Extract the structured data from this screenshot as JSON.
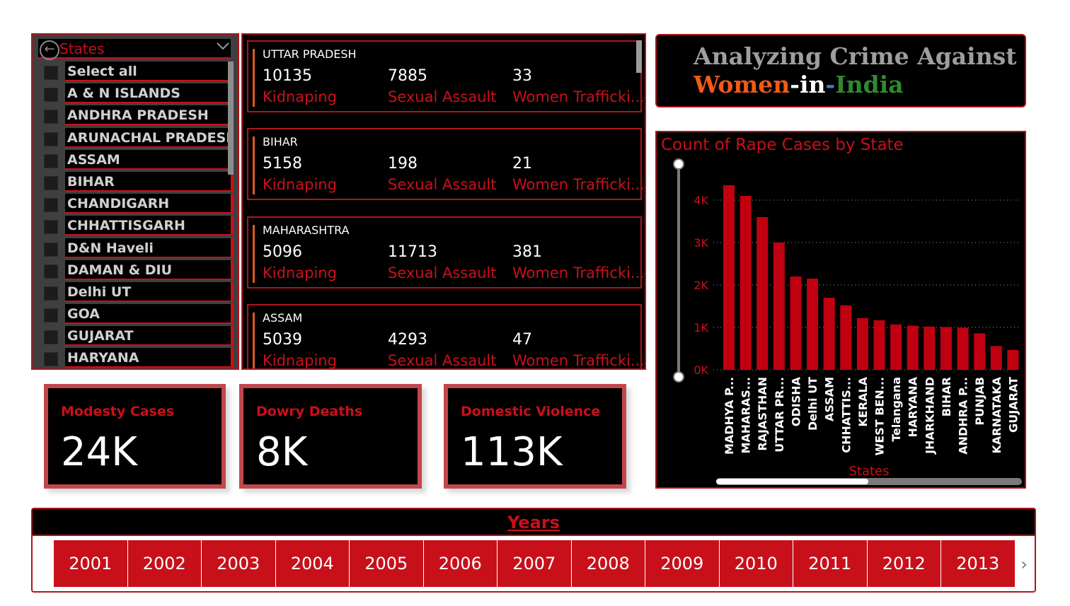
{
  "state_slicer": {
    "title": "States",
    "items": [
      "Select all",
      "A & N ISLANDS",
      "ANDHRA PRADESH",
      "ARUNACHAL PRADESH",
      "ASSAM",
      "BIHAR",
      "CHANDIGARH",
      "CHHATTISGARH",
      "D&N Haveli",
      "DAMAN & DIU",
      "Delhi UT",
      "GOA",
      "GUJARAT",
      "HARYANA"
    ]
  },
  "state_cards": [
    {
      "state": "UTTAR PRADESH",
      "kidnaping": "10135",
      "sexual_assault": "7885",
      "women_trafficking": "33"
    },
    {
      "state": "BIHAR",
      "kidnaping": "5158",
      "sexual_assault": "198",
      "women_trafficking": "21"
    },
    {
      "state": "MAHARASHTRA",
      "kidnaping": "5096",
      "sexual_assault": "11713",
      "women_trafficking": "381"
    },
    {
      "state": "ASSAM",
      "kidnaping": "5039",
      "sexual_assault": "4293",
      "women_trafficking": "47"
    }
  ],
  "card_labels": {
    "kidnaping": "Kidnaping",
    "sexual_assault": "Sexual Assault",
    "women_trafficking": "Women Trafficki..."
  },
  "title": {
    "line1": "Analyzing Crime Against",
    "women": "Women",
    "dash1": "-",
    "in": "in",
    "dash2": "-",
    "india": "India"
  },
  "kpis": [
    {
      "title": "Modesty Cases",
      "value": "24K"
    },
    {
      "title": "Dowry Deaths",
      "value": "8K"
    },
    {
      "title": "Domestic Violence",
      "value": "113K"
    }
  ],
  "chart_data": {
    "type": "bar",
    "title": "Count of Rape Cases by State",
    "xlabel": "States",
    "ylabel": "",
    "yticks": [
      "0K",
      "1K",
      "2K",
      "3K",
      "4K"
    ],
    "ylim": [
      0,
      4600
    ],
    "categories": [
      "MADHYA P...",
      "MAHARAS...",
      "RAJASTHAN",
      "UTTAR PR...",
      "ODISHA",
      "Delhi UT",
      "ASSAM",
      "CHHATTIS...",
      "KERALA",
      "WEST BEN...",
      "Telangana",
      "HARYANA",
      "JHARKHAND",
      "BIHAR",
      "ANDHRA P...",
      "PUNJAB",
      "KARNATAKA",
      "GUJARAT"
    ],
    "values": [
      4350,
      4100,
      3600,
      3000,
      2200,
      2150,
      1700,
      1520,
      1220,
      1170,
      1070,
      1040,
      1020,
      1010,
      990,
      860,
      560,
      470
    ],
    "bar_color": "#c00010"
  },
  "years": {
    "title": "Years",
    "items": [
      "2001",
      "2002",
      "2003",
      "2004",
      "2005",
      "2006",
      "2007",
      "2008",
      "2009",
      "2010",
      "2011",
      "2012",
      "2013"
    ]
  },
  "colors": {
    "accent_red": "#c8101a",
    "saffron": "#f05a1a",
    "green": "#2f8a2f"
  }
}
